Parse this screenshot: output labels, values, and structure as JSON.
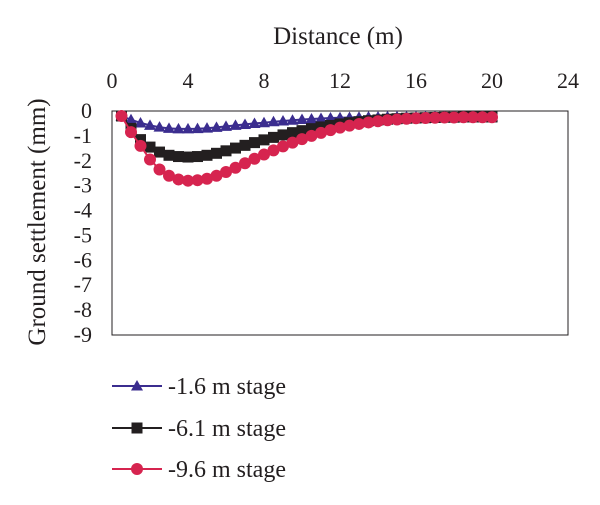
{
  "chart_data": {
    "type": "line",
    "xlabel": "Distance (m)",
    "ylabel": "Ground settlement (mm)",
    "x_axis_position": "top",
    "xlim": [
      0,
      24
    ],
    "ylim": [
      -9,
      0
    ],
    "x_ticks": [
      "0",
      "4",
      "8",
      "12",
      "16",
      "20",
      "24"
    ],
    "y_ticks": [
      "0",
      "-1",
      "-2",
      "-3",
      "-4",
      "-5",
      "-6",
      "-7",
      "-8",
      "-9"
    ],
    "grid": false,
    "legend_placement": "bottom",
    "series": [
      {
        "name": "-1.6 m stage",
        "color": "#3b2d8f",
        "marker": "triangle",
        "x": [
          0.5,
          1,
          1.5,
          2,
          2.5,
          3,
          3.5,
          4,
          4.5,
          5,
          5.5,
          6,
          6.5,
          7,
          7.5,
          8,
          8.5,
          9,
          9.5,
          10,
          10.5,
          11,
          11.5,
          12,
          12.5,
          13,
          13.5,
          14,
          14.5,
          15,
          15.5,
          16,
          16.5,
          17,
          17.5,
          18,
          18.5,
          19,
          19.5,
          20
        ],
        "y": [
          -0.2,
          -0.35,
          -0.48,
          -0.58,
          -0.65,
          -0.7,
          -0.72,
          -0.72,
          -0.71,
          -0.69,
          -0.66,
          -0.62,
          -0.58,
          -0.54,
          -0.5,
          -0.47,
          -0.43,
          -0.4,
          -0.37,
          -0.34,
          -0.32,
          -0.3,
          -0.28,
          -0.27,
          -0.26,
          -0.25,
          -0.24,
          -0.24,
          -0.23,
          -0.23,
          -0.23,
          -0.23,
          -0.23,
          -0.23,
          -0.23,
          -0.23,
          -0.23,
          -0.23,
          -0.23,
          -0.23
        ]
      },
      {
        "name": "-6.1 m stage",
        "color": "#231f20",
        "marker": "square",
        "x": [
          0.5,
          1,
          1.5,
          2,
          2.5,
          3,
          3.5,
          4,
          4.5,
          5,
          5.5,
          6,
          6.5,
          7,
          7.5,
          8,
          8.5,
          9,
          9.5,
          10,
          10.5,
          11,
          11.5,
          12,
          12.5,
          13,
          13.5,
          14,
          14.5,
          15,
          15.5,
          16,
          16.5,
          17,
          17.5,
          18,
          18.5,
          19,
          19.5,
          20
        ],
        "y": [
          -0.2,
          -0.7,
          -1.15,
          -1.45,
          -1.65,
          -1.78,
          -1.83,
          -1.85,
          -1.83,
          -1.78,
          -1.7,
          -1.6,
          -1.49,
          -1.38,
          -1.27,
          -1.16,
          -1.06,
          -0.96,
          -0.87,
          -0.79,
          -0.71,
          -0.64,
          -0.58,
          -0.52,
          -0.47,
          -0.43,
          -0.39,
          -0.36,
          -0.33,
          -0.31,
          -0.29,
          -0.28,
          -0.27,
          -0.26,
          -0.25,
          -0.25,
          -0.24,
          -0.24,
          -0.24,
          -0.24
        ]
      },
      {
        "name": "-9.6 m stage",
        "color": "#d6244f",
        "marker": "circle",
        "x": [
          0.5,
          1,
          1.5,
          2,
          2.5,
          3,
          3.5,
          4,
          4.5,
          5,
          5.5,
          6,
          6.5,
          7,
          7.5,
          8,
          8.5,
          9,
          9.5,
          10,
          10.5,
          11,
          11.5,
          12,
          12.5,
          13,
          13.5,
          14,
          14.5,
          15,
          15.5,
          16,
          16.5,
          17,
          17.5,
          18,
          18.5,
          19,
          19.5,
          20
        ],
        "y": [
          -0.2,
          -0.85,
          -1.4,
          -1.95,
          -2.35,
          -2.6,
          -2.75,
          -2.8,
          -2.78,
          -2.72,
          -2.6,
          -2.45,
          -2.28,
          -2.1,
          -1.92,
          -1.75,
          -1.58,
          -1.42,
          -1.27,
          -1.13,
          -1.0,
          -0.88,
          -0.77,
          -0.67,
          -0.59,
          -0.52,
          -0.46,
          -0.41,
          -0.37,
          -0.34,
          -0.31,
          -0.29,
          -0.28,
          -0.27,
          -0.26,
          -0.26,
          -0.25,
          -0.25,
          -0.25,
          -0.25
        ]
      }
    ]
  }
}
